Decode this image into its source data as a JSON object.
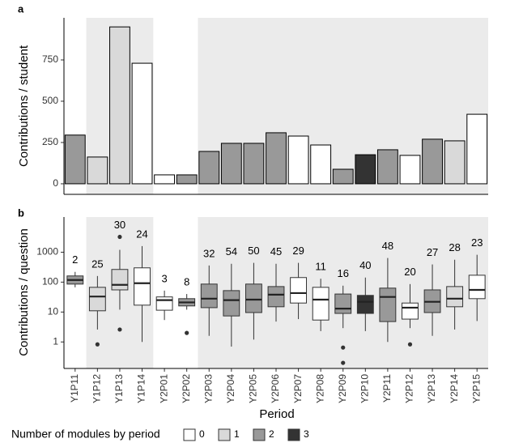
{
  "chart_data": [
    {
      "type": "bar",
      "label": "a",
      "ylabel": "Contributions / student",
      "values": [
        295,
        162,
        950,
        730,
        54,
        54,
        196,
        245,
        245,
        309,
        289,
        235,
        88,
        176,
        206,
        172,
        270,
        260,
        421
      ],
      "modules": [
        2,
        1,
        1,
        0,
        0,
        2,
        2,
        2,
        2,
        2,
        0,
        0,
        2,
        3,
        2,
        0,
        2,
        1,
        0
      ],
      "ylim": [
        -64,
        1005
      ],
      "yticks": [
        0,
        250,
        500,
        750
      ]
    },
    {
      "type": "box",
      "label": "b",
      "ylabel": "Contributions / question",
      "xlabel": "Period",
      "log_scale": true,
      "categories": [
        "Y1P11",
        "Y1P12",
        "Y1P13",
        "Y1P14",
        "Y2P01",
        "Y2P02",
        "Y2P03",
        "Y2P04",
        "Y2P05",
        "Y2P06",
        "Y2P07",
        "Y2P08",
        "Y2P09",
        "Y2P10",
        "Y2P11",
        "Y2P12",
        "Y2P13",
        "Y2P14",
        "Y2P15"
      ],
      "counts": [
        2,
        25,
        30,
        24,
        3,
        8,
        32,
        54,
        50,
        45,
        29,
        11,
        16,
        40,
        48,
        20,
        27,
        28,
        23
      ],
      "boxes": [
        {
          "whislo": 67,
          "q1": 86,
          "med": 118,
          "q3": 161,
          "whishi": 220,
          "fliers": []
        },
        {
          "whislo": 2.6,
          "q1": 11,
          "med": 33,
          "q3": 67,
          "whishi": 160,
          "fliers": [
            0.83
          ]
        },
        {
          "whislo": 12,
          "q1": 55,
          "med": 81,
          "q3": 265,
          "whishi": 1200,
          "fliers": [
            3250,
            2.6
          ]
        },
        {
          "whislo": 1,
          "q1": 17,
          "med": 92,
          "q3": 300,
          "whishi": 1600,
          "fliers": []
        },
        {
          "whislo": 5.4,
          "q1": 11.5,
          "med": 25,
          "q3": 32,
          "whishi": 52,
          "fliers": []
        },
        {
          "whislo": 12,
          "q1": 16,
          "med": 21,
          "q3": 28,
          "whishi": 40,
          "fliers": [
            2
          ]
        },
        {
          "whislo": 1.6,
          "q1": 14,
          "med": 28,
          "q3": 86,
          "whishi": 360,
          "fliers": []
        },
        {
          "whislo": 0.7,
          "q1": 7.4,
          "med": 25,
          "q3": 52,
          "whishi": 410,
          "fliers": []
        },
        {
          "whislo": 1.2,
          "q1": 9.6,
          "med": 26,
          "q3": 86,
          "whishi": 440,
          "fliers": []
        },
        {
          "whislo": 4.8,
          "q1": 15,
          "med": 38,
          "q3": 71,
          "whishi": 410,
          "fliers": []
        },
        {
          "whislo": 5.8,
          "q1": 20,
          "med": 43,
          "q3": 142,
          "whishi": 440,
          "fliers": []
        },
        {
          "whislo": 2.3,
          "q1": 5.4,
          "med": 26,
          "q3": 67,
          "whishi": 130,
          "fliers": []
        },
        {
          "whislo": 2.9,
          "q1": 9,
          "med": 13,
          "q3": 40,
          "whishi": 76,
          "fliers": [
            0.65,
            0.2
          ]
        },
        {
          "whislo": 2.3,
          "q1": 9,
          "med": 22,
          "q3": 36,
          "whishi": 142,
          "fliers": []
        },
        {
          "whislo": 1,
          "q1": 4.8,
          "med": 32,
          "q3": 63,
          "whishi": 640,
          "fliers": []
        },
        {
          "whislo": 2.9,
          "q1": 5.8,
          "med": 14,
          "q3": 20,
          "whishi": 86,
          "fliers": [
            0.83
          ]
        },
        {
          "whislo": 1.6,
          "q1": 9.6,
          "med": 22,
          "q3": 55,
          "whishi": 390,
          "fliers": []
        },
        {
          "whislo": 2.6,
          "q1": 15,
          "med": 28,
          "q3": 71,
          "whishi": 560,
          "fliers": []
        },
        {
          "whislo": 5,
          "q1": 28,
          "med": 55,
          "q3": 170,
          "whishi": 820,
          "fliers": []
        }
      ],
      "ylim": [
        0.13,
        15000
      ],
      "yticks": [
        1,
        10,
        100,
        1000
      ],
      "legend": {
        "title": "Number of modules by period",
        "items": [
          {
            "value": 0,
            "color": "#ffffff"
          },
          {
            "value": 1,
            "color": "#d9d9d9"
          },
          {
            "value": 2,
            "color": "#999999"
          },
          {
            "value": 3,
            "color": "#333333"
          }
        ]
      }
    }
  ]
}
